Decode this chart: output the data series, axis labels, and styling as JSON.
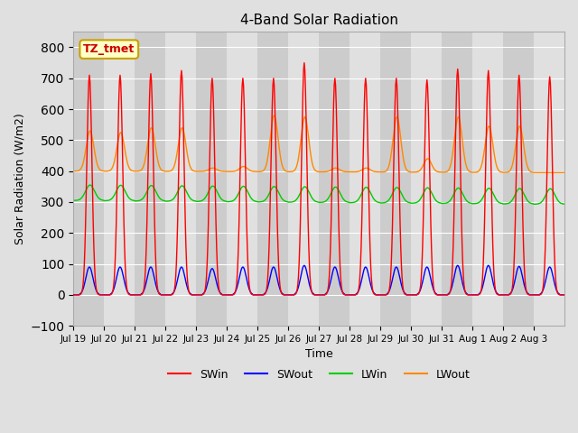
{
  "title": "4-Band Solar Radiation",
  "ylabel": "Solar Radiation (W/m2)",
  "xlabel": "Time",
  "ylim": [
    -100,
    850
  ],
  "yticks": [
    -100,
    0,
    100,
    200,
    300,
    400,
    500,
    600,
    700,
    800
  ],
  "background_color": "#e0e0e0",
  "plot_bg_color": "#d4d4d4",
  "grid_color": "#ffffff",
  "label_box_text": "TZ_tmet",
  "label_box_facecolor": "#ffffc8",
  "label_box_edgecolor": "#c8a000",
  "label_box_textcolor": "#cc0000",
  "series": {
    "SWin": {
      "color": "#ff0000",
      "lw": 1.0
    },
    "SWout": {
      "color": "#0000ff",
      "lw": 1.0
    },
    "LWin": {
      "color": "#00cc00",
      "lw": 1.0
    },
    "LWout": {
      "color": "#ff8800",
      "lw": 1.0
    }
  },
  "xtick_labels": [
    "Jul 19",
    "Jul 20",
    "Jul 21",
    "Jul 22",
    "Jul 23",
    "Jul 24",
    "Jul 25",
    "Jul 26",
    "Jul 27",
    "Jul 28",
    "Jul 29",
    "Jul 30",
    "Jul 31",
    "Aug 1",
    "Aug 2",
    "Aug 3"
  ],
  "n_days": 16,
  "dt_hours": 0.5,
  "sw_peaks": [
    710,
    710,
    715,
    725,
    700,
    700,
    700,
    750,
    700,
    700,
    700,
    695,
    730,
    725,
    710,
    705
  ],
  "swout_peaks": [
    90,
    90,
    90,
    90,
    85,
    90,
    90,
    95,
    90,
    90,
    90,
    90,
    95,
    95,
    92,
    90
  ],
  "LWin_base": 305,
  "LWin_amp": 50,
  "LWout_base": 400,
  "lw_out_peaks": [
    530,
    525,
    540,
    540,
    410,
    415,
    580,
    575,
    410,
    410,
    575,
    440,
    575,
    545,
    545,
    395
  ]
}
